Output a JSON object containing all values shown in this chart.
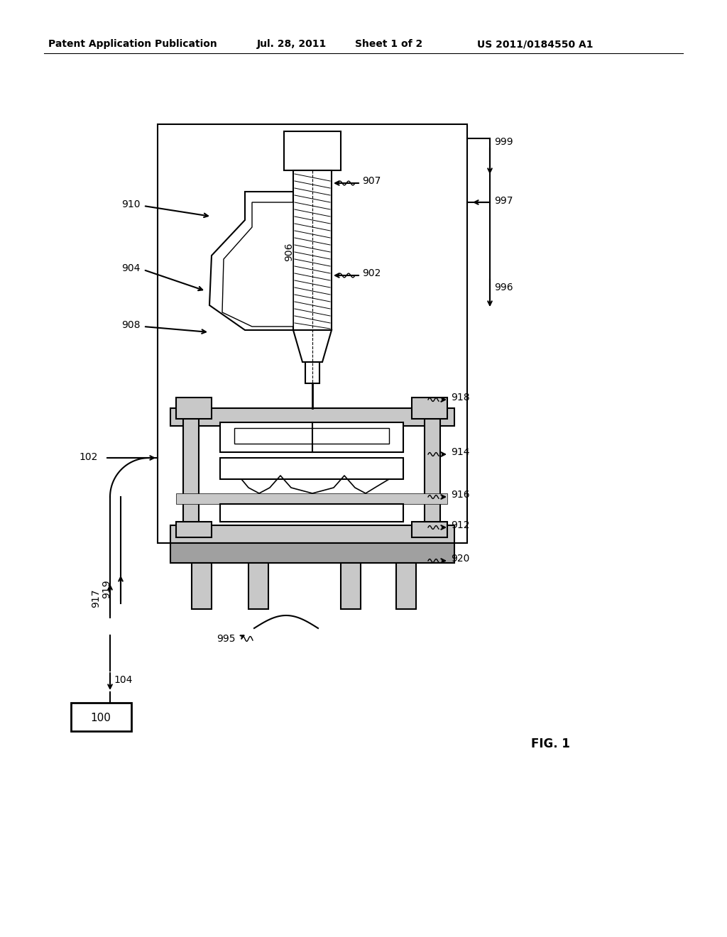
{
  "bg_color": "#ffffff",
  "header_text": "Patent Application Publication",
  "header_date": "Jul. 28, 2011",
  "header_sheet": "Sheet 1 of 2",
  "header_patent": "US 2011/0184550 A1",
  "fig_label": "FIG. 1",
  "gray_light": "#c8c8c8",
  "gray_mid": "#a0a0a0",
  "gray_dark": "#888888"
}
